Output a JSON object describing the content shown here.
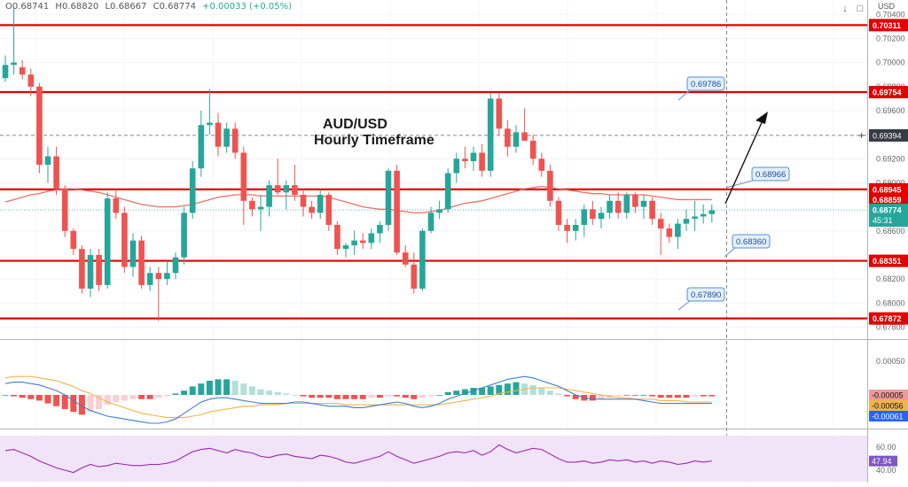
{
  "header": {
    "open": "O0.68741",
    "high": "H0.68820",
    "low": "L0.68667",
    "close": "C0.68774",
    "change": "+0.00033 (+0.05%)"
  },
  "topbar": {
    "scroll_icon": "arrow-down-icon",
    "settings_icon": "square-icon",
    "usd_label": "USD"
  },
  "title": {
    "line1": "AUD/USD",
    "line2": "Hourly Timeframe"
  },
  "colors": {
    "up": "#26a69a",
    "down": "#ef5350",
    "level": "#e00000",
    "ma": "#e57368",
    "macd": "#3f7fd0",
    "signal": "#f0b44c",
    "rsi": "#9c27b0",
    "rsi_band": "#f1e4f8"
  },
  "chart_data": [
    {
      "type": "candlestick",
      "name": "AUD/USD",
      "timeframe": "1H",
      "ylim": [
        0.677,
        0.7052
      ],
      "yticks": [
        "0.70400",
        "0.70200",
        "0.70000",
        "0.69800",
        "0.69600",
        "0.69200",
        "0.69000",
        "0.68600",
        "0.68200",
        "0.68000",
        "0.67800"
      ],
      "candles": [
        [
          0.6987,
          0.7006,
          0.6984,
          0.6998
        ],
        [
          0.6998,
          0.7045,
          0.699,
          0.7
        ],
        [
          0.6996,
          0.7002,
          0.6986,
          0.699
        ],
        [
          0.699,
          0.6995,
          0.6972,
          0.698
        ],
        [
          0.698,
          0.6983,
          0.6908,
          0.6915
        ],
        [
          0.6915,
          0.693,
          0.69,
          0.6922
        ],
        [
          0.6922,
          0.693,
          0.689,
          0.6895
        ],
        [
          0.6895,
          0.6898,
          0.6855,
          0.686
        ],
        [
          0.686,
          0.6862,
          0.684,
          0.6845
        ],
        [
          0.6845,
          0.6848,
          0.6808,
          0.6812
        ],
        [
          0.6812,
          0.6845,
          0.6805,
          0.684
        ],
        [
          0.684,
          0.6845,
          0.681,
          0.6815
        ],
        [
          0.6815,
          0.6892,
          0.6812,
          0.6887
        ],
        [
          0.6887,
          0.6895,
          0.687,
          0.6875
        ],
        [
          0.6875,
          0.688,
          0.6825,
          0.683
        ],
        [
          0.683,
          0.6858,
          0.6822,
          0.6852
        ],
        [
          0.6852,
          0.6856,
          0.6812,
          0.6815
        ],
        [
          0.6815,
          0.683,
          0.681,
          0.6825
        ],
        [
          0.6825,
          0.683,
          0.6785,
          0.682
        ],
        [
          0.682,
          0.6835,
          0.6815,
          0.6825
        ],
        [
          0.6825,
          0.6842,
          0.682,
          0.6838
        ],
        [
          0.6838,
          0.688,
          0.6832,
          0.6875
        ],
        [
          0.6875,
          0.6918,
          0.687,
          0.6912
        ],
        [
          0.6912,
          0.696,
          0.6905,
          0.6948
        ],
        [
          0.6948,
          0.6978,
          0.694,
          0.695
        ],
        [
          0.695,
          0.6958,
          0.6922,
          0.693
        ],
        [
          0.693,
          0.695,
          0.6925,
          0.6945
        ],
        [
          0.6945,
          0.695,
          0.692,
          0.6925
        ],
        [
          0.6925,
          0.693,
          0.6865,
          0.6885
        ],
        [
          0.6885,
          0.6888,
          0.6872,
          0.6878
        ],
        [
          0.6878,
          0.689,
          0.686,
          0.688
        ],
        [
          0.688,
          0.6902,
          0.6872,
          0.6898
        ],
        [
          0.6898,
          0.692,
          0.689,
          0.6892
        ],
        [
          0.6892,
          0.6902,
          0.6878,
          0.6898
        ],
        [
          0.6898,
          0.6915,
          0.6885,
          0.689
        ],
        [
          0.689,
          0.6895,
          0.6872,
          0.688
        ],
        [
          0.688,
          0.6885,
          0.687,
          0.6875
        ],
        [
          0.6875,
          0.6895,
          0.687,
          0.689
        ],
        [
          0.689,
          0.6892,
          0.686,
          0.6865
        ],
        [
          0.6865,
          0.6868,
          0.684,
          0.6845
        ],
        [
          0.6845,
          0.685,
          0.6838,
          0.6848
        ],
        [
          0.6848,
          0.686,
          0.684,
          0.6852
        ],
        [
          0.6852,
          0.6858,
          0.6845,
          0.685
        ],
        [
          0.685,
          0.6862,
          0.6845,
          0.6858
        ],
        [
          0.6858,
          0.6868,
          0.685,
          0.6865
        ],
        [
          0.6865,
          0.6912,
          0.686,
          0.691
        ],
        [
          0.691,
          0.6915,
          0.684,
          0.6842
        ],
        [
          0.6842,
          0.6848,
          0.683,
          0.6832
        ],
        [
          0.6832,
          0.6842,
          0.6808,
          0.6812
        ],
        [
          0.6812,
          0.6862,
          0.681,
          0.686
        ],
        [
          0.686,
          0.688,
          0.6858,
          0.6875
        ],
        [
          0.6875,
          0.6885,
          0.687,
          0.6878
        ],
        [
          0.6878,
          0.6912,
          0.6875,
          0.6908
        ],
        [
          0.6908,
          0.6925,
          0.69,
          0.692
        ],
        [
          0.692,
          0.693,
          0.6912,
          0.6918
        ],
        [
          0.6918,
          0.693,
          0.691,
          0.6925
        ],
        [
          0.6925,
          0.6932,
          0.6905,
          0.691
        ],
        [
          0.691,
          0.6975,
          0.6905,
          0.697
        ],
        [
          0.697,
          0.6975,
          0.694,
          0.6945
        ],
        [
          0.6945,
          0.6952,
          0.6922,
          0.693
        ],
        [
          0.693,
          0.6948,
          0.6925,
          0.6942
        ],
        [
          0.6942,
          0.6962,
          0.6935,
          0.6935
        ],
        [
          0.6935,
          0.694,
          0.6915,
          0.692
        ],
        [
          0.692,
          0.6925,
          0.6905,
          0.691
        ],
        [
          0.691,
          0.6915,
          0.688,
          0.6885
        ],
        [
          0.6885,
          0.6888,
          0.686,
          0.6865
        ],
        [
          0.6865,
          0.687,
          0.685,
          0.686
        ],
        [
          0.686,
          0.687,
          0.6852,
          0.6865
        ],
        [
          0.6865,
          0.6882,
          0.6855,
          0.6878
        ],
        [
          0.6878,
          0.6885,
          0.6865,
          0.687
        ],
        [
          0.687,
          0.688,
          0.6862,
          0.6875
        ],
        [
          0.6875,
          0.689,
          0.687,
          0.6885
        ],
        [
          0.6885,
          0.6892,
          0.687,
          0.6875
        ],
        [
          0.6875,
          0.6892,
          0.687,
          0.689
        ],
        [
          0.689,
          0.6892,
          0.6875,
          0.688
        ],
        [
          0.688,
          0.689,
          0.687,
          0.6885
        ],
        [
          0.6885,
          0.6888,
          0.6865,
          0.687
        ],
        [
          0.687,
          0.6875,
          0.684,
          0.6862
        ],
        [
          0.6862,
          0.6866,
          0.685,
          0.6855
        ],
        [
          0.6855,
          0.687,
          0.6845,
          0.6866
        ],
        [
          0.6866,
          0.6878,
          0.686,
          0.687
        ],
        [
          0.687,
          0.6885,
          0.686,
          0.6872
        ],
        [
          0.6872,
          0.6882,
          0.6866,
          0.6874
        ],
        [
          0.6874,
          0.6882,
          0.6867,
          0.6877
        ]
      ],
      "moving_average": [
        0.6884,
        0.6886,
        0.6888,
        0.689,
        0.6891,
        0.6893,
        0.6894,
        0.6895,
        0.6895,
        0.6894,
        0.6893,
        0.6892,
        0.689,
        0.6888,
        0.6886,
        0.6884,
        0.6882,
        0.6881,
        0.688,
        0.688,
        0.688,
        0.6881,
        0.6882,
        0.6884,
        0.6886,
        0.6888,
        0.6889,
        0.689,
        0.689,
        0.689,
        0.6889,
        0.6889,
        0.6889,
        0.6889,
        0.6889,
        0.6889,
        0.6889,
        0.6889,
        0.6888,
        0.6886,
        0.6884,
        0.6882,
        0.688,
        0.6879,
        0.6878,
        0.6878,
        0.6877,
        0.6876,
        0.6875,
        0.6875,
        0.6876,
        0.6877,
        0.6879,
        0.6881,
        0.6883,
        0.6884,
        0.6885,
        0.6887,
        0.6889,
        0.6891,
        0.6893,
        0.6895,
        0.6896,
        0.6897,
        0.6896,
        0.6895,
        0.6894,
        0.6893,
        0.6892,
        0.6891,
        0.6891,
        0.689,
        0.689,
        0.689,
        0.689,
        0.689,
        0.6889,
        0.6888,
        0.6887,
        0.6886,
        0.6886,
        0.6886,
        0.6886,
        0.6886
      ],
      "levels": [
        {
          "value": 0.70311,
          "label": "0.70311"
        },
        {
          "value": 0.69754,
          "label": "0.69754"
        },
        {
          "value": 0.68945,
          "label": "0.68945"
        },
        {
          "value": 0.68351,
          "label": "0.68351"
        },
        {
          "value": 0.67872,
          "label": "0.67872"
        }
      ],
      "markers": [
        {
          "value": 0.69394,
          "label": "0.69394"
        },
        {
          "value": 0.68859,
          "label": "0.68859"
        },
        {
          "value": 0.68774,
          "label": "0.68774"
        }
      ],
      "countdown": "45:31",
      "callouts": [
        "0.69786",
        "0.68966",
        "0.68360",
        "0.67890"
      ]
    },
    {
      "type": "macd",
      "name": "MACD",
      "yticks": [
        "0.00050"
      ],
      "values": [
        {
          "label": "-0.00005",
          "color": "#ef9a9a"
        },
        {
          "label": "-0.00056",
          "color": "#f0b44c"
        },
        {
          "label": "-0.00061",
          "color": "#2962ff"
        }
      ],
      "histogram": [
        0.0,
        -0.0001,
        -0.0002,
        -0.0003,
        -0.0004,
        -0.0006,
        -0.0008,
        -0.001,
        -0.0012,
        -0.0014,
        -0.0012,
        -0.001,
        -0.0007,
        -0.0005,
        -0.0004,
        -0.0003,
        -0.0003,
        -0.0003,
        -0.0002,
        -0.0001,
        0.0001,
        0.0003,
        0.0006,
        0.0008,
        0.001,
        0.0011,
        0.0011,
        0.001,
        0.0008,
        0.0006,
        0.0004,
        0.0003,
        0.0002,
        0.0001,
        0.0,
        -0.0001,
        -0.0002,
        -0.0002,
        -0.0002,
        -0.0003,
        -0.0003,
        -0.0003,
        -0.0003,
        -0.0002,
        -0.0002,
        -0.0001,
        -0.0001,
        -0.0002,
        -0.0003,
        -0.0002,
        -0.0001,
        0.0,
        0.0002,
        0.0003,
        0.0004,
        0.0005,
        0.0005,
        0.0006,
        0.0007,
        0.0008,
        0.0009,
        0.0008,
        0.0007,
        0.0005,
        0.0003,
        0.0001,
        -0.0001,
        -0.0003,
        -0.0004,
        -0.0004,
        -0.0003,
        -0.0002,
        -0.0001,
        0.0,
        0.0,
        0.0,
        -0.0001,
        -0.0002,
        -0.0002,
        -0.0002,
        -0.0002,
        -0.0001,
        -0.0001,
        -0.0001
      ],
      "macd_line": [
        0.0008,
        0.0009,
        0.0009,
        0.0008,
        0.0007,
        0.0005,
        0.0003,
        0.0,
        -0.0004,
        -0.0008,
        -0.0011,
        -0.0013,
        -0.0015,
        -0.0016,
        -0.0017,
        -0.0018,
        -0.0019,
        -0.002,
        -0.002,
        -0.0019,
        -0.0017,
        -0.0013,
        -0.0009,
        -0.0005,
        -0.0003,
        -0.0002,
        -0.0002,
        -0.0003,
        -0.0004,
        -0.0005,
        -0.0006,
        -0.0006,
        -0.0006,
        -0.0006,
        -0.0005,
        -0.0005,
        -0.0006,
        -0.0007,
        -0.0008,
        -0.0008,
        -0.0008,
        -0.0009,
        -0.0009,
        -0.0008,
        -0.0007,
        -0.0006,
        -0.0005,
        -0.0006,
        -0.0008,
        -0.0009,
        -0.0008,
        -0.0006,
        -0.0003,
        -0.0001,
        0.0001,
        0.0003,
        0.0005,
        0.0007,
        0.0009,
        0.0011,
        0.0012,
        0.0013,
        0.0012,
        0.001,
        0.0008,
        0.0006,
        0.0003,
        0.0,
        -0.0002,
        -0.0003,
        -0.0003,
        -0.0003,
        -0.0003,
        -0.0003,
        -0.0003,
        -0.0004,
        -0.0005,
        -0.0006,
        -0.0006,
        -0.0006,
        -0.0006,
        -0.0006,
        -0.0006,
        -0.0006
      ],
      "signal_line": [
        0.0012,
        0.0013,
        0.0013,
        0.0013,
        0.0012,
        0.0011,
        0.001,
        0.0008,
        0.0006,
        0.0003,
        0.0001,
        -0.0002,
        -0.0005,
        -0.0007,
        -0.0009,
        -0.0011,
        -0.0013,
        -0.0014,
        -0.0015,
        -0.0016,
        -0.0016,
        -0.0016,
        -0.0015,
        -0.0014,
        -0.0012,
        -0.0011,
        -0.001,
        -0.0009,
        -0.0008,
        -0.0008,
        -0.0007,
        -0.0007,
        -0.0007,
        -0.0006,
        -0.0006,
        -0.0006,
        -0.0006,
        -0.0006,
        -0.0006,
        -0.0006,
        -0.0007,
        -0.0007,
        -0.0007,
        -0.0007,
        -0.0007,
        -0.0007,
        -0.0007,
        -0.0007,
        -0.0007,
        -0.0007,
        -0.0007,
        -0.0007,
        -0.0006,
        -0.0005,
        -0.0004,
        -0.0003,
        -0.0002,
        -0.0001,
        0.0001,
        0.0002,
        0.0003,
        0.0004,
        0.0005,
        0.0005,
        0.0005,
        0.0005,
        0.0004,
        0.0003,
        0.0002,
        0.0001,
        0.0,
        -0.0001,
        -0.0002,
        -0.0002,
        -0.0003,
        -0.0003,
        -0.0003,
        -0.0004,
        -0.0004,
        -0.0004,
        -0.0005,
        -0.0005,
        -0.0005,
        -0.0005
      ]
    },
    {
      "type": "rsi",
      "name": "RSI",
      "ylim": [
        35,
        70
      ],
      "yticks": [
        "60.00",
        "40.00"
      ],
      "current": "47.94",
      "values": [
        57,
        58,
        55,
        52,
        48,
        45,
        42,
        40,
        38,
        42,
        45,
        43,
        44,
        46,
        45,
        44,
        44,
        45,
        45,
        46,
        48,
        52,
        56,
        58,
        59,
        57,
        55,
        58,
        56,
        55,
        52,
        51,
        53,
        54,
        52,
        51,
        50,
        53,
        52,
        50,
        47,
        46,
        48,
        50,
        52,
        56,
        52,
        49,
        46,
        48,
        50,
        52,
        55,
        56,
        55,
        57,
        53,
        56,
        62,
        58,
        55,
        57,
        59,
        58,
        54,
        50,
        47,
        47,
        48,
        46,
        47,
        49,
        48,
        49,
        47,
        48,
        46,
        48,
        47,
        45,
        46,
        48,
        47,
        48
      ]
    }
  ]
}
